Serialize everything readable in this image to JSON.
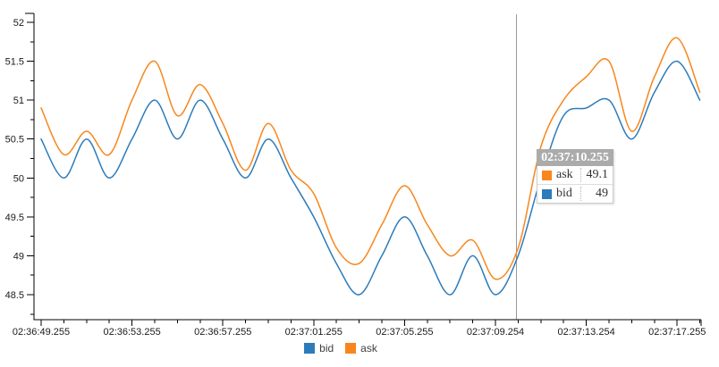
{
  "chart_data": {
    "type": "line",
    "title": "",
    "xlabel": "",
    "ylabel": "",
    "grid": false,
    "legend_position": "bottom",
    "x_tick_labels": [
      "02:36:49.255",
      "02:36:53.255",
      "02:36:57.255",
      "02:37:01.255",
      "02:37:05.255",
      "02:37:09.254",
      "02:37:13.254",
      "02:37:17.255"
    ],
    "x_points_per_labeled_tick": 4,
    "n_points": 30,
    "y_ticks": [
      48.5,
      49,
      49.5,
      50,
      50.5,
      51,
      51.5,
      52
    ],
    "y_tick_labels": [
      "48.5",
      "49",
      "49.5",
      "50",
      "50.5",
      "51",
      "51.5",
      "52"
    ],
    "y_minor_ticks": [
      48.25,
      48.75,
      49.25,
      49.75,
      50.25,
      50.75,
      51.25,
      51.75
    ],
    "ylim": [
      48.15,
      52.11
    ],
    "series": [
      {
        "name": "bid",
        "color": "#2d7bb9",
        "values": [
          50.5,
          50.0,
          50.5,
          50.0,
          50.5,
          51.0,
          50.5,
          51.0,
          50.5,
          50.0,
          50.5,
          50.0,
          49.5,
          48.9,
          48.5,
          49.0,
          49.5,
          49.0,
          48.5,
          49.0,
          48.5,
          49.0,
          50.0,
          50.8,
          50.9,
          51.0,
          50.5,
          51.1,
          51.5,
          51.0
        ]
      },
      {
        "name": "ask",
        "color": "#f8861d",
        "values": [
          50.9,
          50.3,
          50.6,
          50.3,
          51.0,
          51.5,
          50.8,
          51.2,
          50.7,
          50.1,
          50.7,
          50.1,
          49.8,
          49.1,
          48.9,
          49.4,
          49.9,
          49.4,
          49.0,
          49.2,
          48.7,
          49.1,
          50.4,
          51.0,
          51.3,
          51.5,
          50.6,
          51.3,
          51.8,
          51.1
        ]
      }
    ],
    "crosshair_time_index": 21
  },
  "tooltip": {
    "title": "02:37:10.255",
    "header_bg": "#ababab",
    "rows": [
      {
        "label": "ask",
        "value": "49.1",
        "color": "#f8861d"
      },
      {
        "label": "bid",
        "value": "49",
        "color": "#2d7bb9"
      }
    ]
  },
  "legend": {
    "items": [
      {
        "label": "bid",
        "color": "#2d7bb9"
      },
      {
        "label": "ask",
        "color": "#f8861d"
      }
    ]
  },
  "colors": {
    "axis": "#000000",
    "tick_label": "#1a1a1a",
    "crosshair": "#999999"
  }
}
